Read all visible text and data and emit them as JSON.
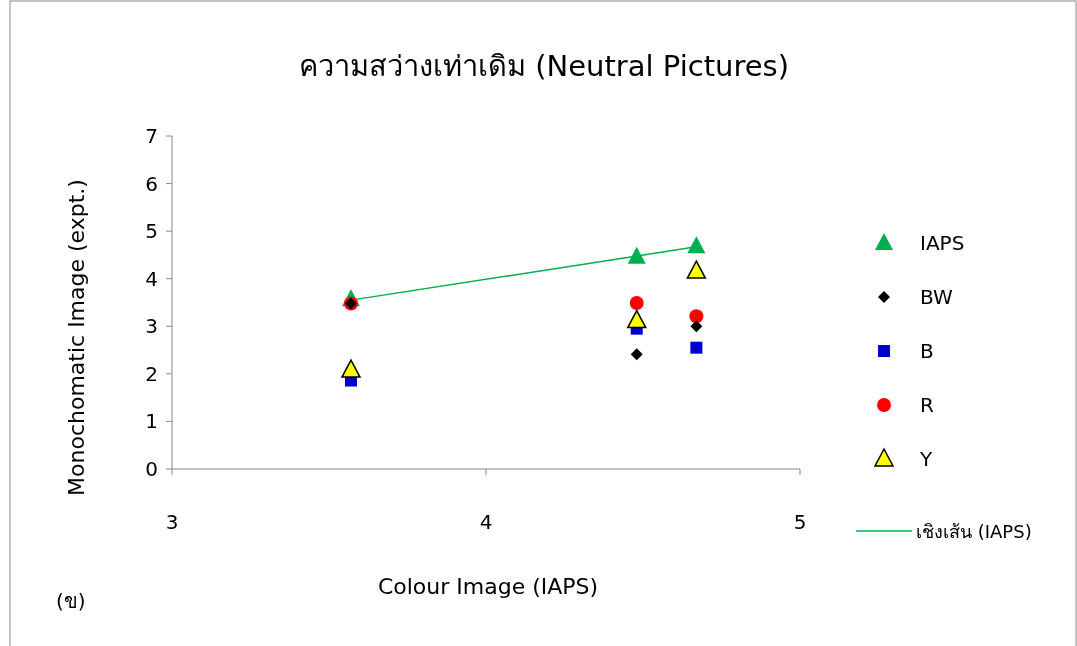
{
  "chart_data": {
    "type": "scatter",
    "title": "ความสว่างเท่าเดิม (Neutral Pictures)",
    "xlabel": "Colour Image (IAPS)",
    "ylabel": "Monochomatic Image (expt.)",
    "annotations": [
      "(ข)"
    ],
    "x": [
      3.57,
      4.48,
      4.67
    ],
    "xlim": [
      3,
      5
    ],
    "xticks": [
      3,
      4,
      5
    ],
    "ylim": [
      0,
      7
    ],
    "yticks": [
      0,
      1,
      2,
      3,
      4,
      5,
      6,
      7
    ],
    "grid": false,
    "legend": "right",
    "series": [
      {
        "name": "IAPS",
        "color": "#00b050",
        "marker": "triangle",
        "values": [
          3.57,
          4.46,
          4.68
        ]
      },
      {
        "name": "BW",
        "color": "#000000",
        "marker": "diamond",
        "values": [
          3.48,
          2.41,
          3.0
        ]
      },
      {
        "name": "B",
        "color": "#0000cc",
        "marker": "square",
        "values": [
          1.86,
          2.95,
          2.55
        ]
      },
      {
        "name": "R",
        "color": "#ff0000",
        "marker": "circle",
        "values": [
          3.48,
          3.49,
          3.21
        ]
      },
      {
        "name": "Y",
        "color": "#ffff00",
        "marker": "triangle",
        "values": [
          2.08,
          3.12,
          4.16
        ]
      },
      {
        "name": "เชิงเส้น (IAPS)",
        "type": "line",
        "color": "#00b050",
        "marker": "none",
        "x": [
          3.57,
          4.67
        ],
        "values": [
          3.55,
          4.67
        ]
      }
    ]
  }
}
